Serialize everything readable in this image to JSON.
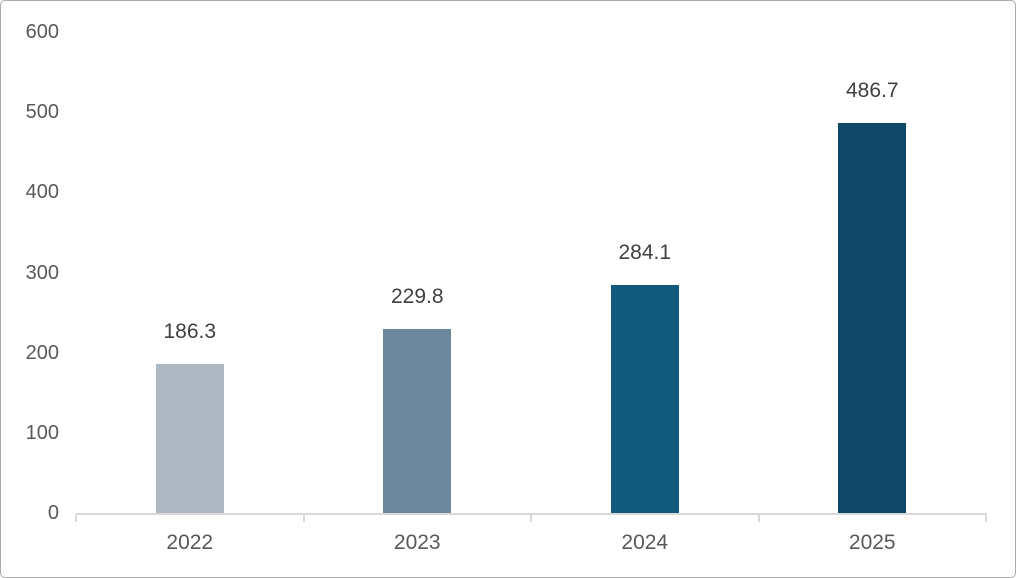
{
  "chart_data": {
    "type": "bar",
    "title": "",
    "xlabel": "",
    "ylabel": "",
    "categories": [
      "2022",
      "2023",
      "2024",
      "2025"
    ],
    "values": [
      186.3,
      229.8,
      284.1,
      486.7
    ],
    "data_labels": [
      "186.3",
      "229.8",
      "284.1",
      "486.7"
    ],
    "bar_colors": [
      "#aeb8c2",
      "#6b889d",
      "#125a7b",
      "#0e4866"
    ],
    "ylim": [
      0,
      600
    ],
    "y_ticks": [
      600,
      500,
      400,
      300,
      200,
      100,
      0
    ],
    "grid": false,
    "legend_position": "none",
    "axis_line_color": "#d9d9d9",
    "axis_label_color": "#595959",
    "data_label_color": "#404040"
  }
}
